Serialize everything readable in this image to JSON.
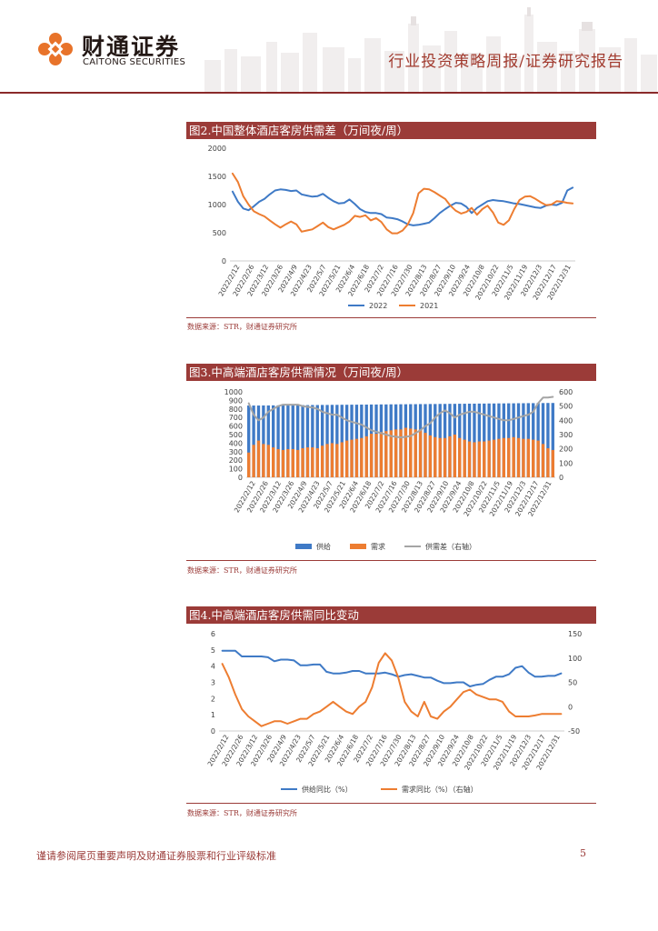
{
  "header": {
    "logo_cn": "财通证券",
    "logo_en": "CAITONG SECURITIES",
    "report_type": "行业投资策略周报/证券研究报告"
  },
  "colors": {
    "accent": "#9b3b38",
    "blue": "#3f7ac6",
    "orange": "#ed7d31",
    "gray": "#a5a5a5"
  },
  "footer": {
    "note": "谨请参阅尾页重要声明及财通证券股票和行业评级标准",
    "page_number": "5"
  },
  "chart_data": [
    {
      "type": "line",
      "title": "图2.中国整体酒店客房供需差（万间夜/周）",
      "source": "数据来源：STR，财通证券研究所",
      "ylim": [
        0,
        2000
      ],
      "yticks": [
        "0",
        "500",
        "1000",
        "1500",
        "2000"
      ],
      "xticks": [
        "2022/2/12",
        "2022/2/26",
        "2022/3/12",
        "2022/3/26",
        "2022/4/9",
        "2022/4/23",
        "2022/5/7",
        "2022/5/21",
        "2022/6/4",
        "2022/6/18",
        "2022/7/2",
        "2022/7/16",
        "2022/7/30",
        "2022/8/13",
        "2022/8/27",
        "2022/9/10",
        "2022/9/24",
        "2022/10/8",
        "2022/10/22",
        "2022/11/5",
        "2022/11/19",
        "2022/12/3",
        "2022/12/17",
        "2022/12/31"
      ],
      "series": [
        {
          "name": "2022",
          "color": "#3f7ac6",
          "values": [
            1230,
            1050,
            930,
            900,
            970,
            1050,
            1100,
            1180,
            1250,
            1270,
            1260,
            1240,
            1250,
            1180,
            1160,
            1140,
            1150,
            1190,
            1120,
            1060,
            1020,
            1030,
            1090,
            1010,
            920,
            870,
            850,
            850,
            830,
            770,
            760,
            740,
            700,
            650,
            630,
            640,
            660,
            680,
            760,
            850,
            920,
            980,
            1030,
            1020,
            960,
            850,
            940,
            1000,
            1060,
            1080,
            1070,
            1060,
            1040,
            1020,
            1010,
            990,
            970,
            950,
            940,
            980,
            1000,
            990,
            1030,
            1250,
            1300
          ]
        },
        {
          "name": "2021",
          "color": "#ed7d31",
          "values": [
            1550,
            1400,
            1150,
            1000,
            880,
            830,
            790,
            720,
            650,
            590,
            650,
            700,
            650,
            520,
            540,
            560,
            620,
            680,
            600,
            560,
            600,
            640,
            700,
            800,
            780,
            810,
            720,
            760,
            690,
            560,
            490,
            490,
            540,
            650,
            850,
            1200,
            1280,
            1270,
            1220,
            1160,
            1100,
            980,
            890,
            840,
            870,
            940,
            820,
            920,
            980,
            860,
            680,
            640,
            720,
            920,
            1080,
            1140,
            1150,
            1100,
            1040,
            990,
            1000,
            1060,
            1050,
            1030,
            1020
          ]
        }
      ]
    },
    {
      "type": "bar",
      "title": "图3.中高端酒店客房供需情况（万间夜/周）",
      "source": "数据来源：STR，财通证券研究所",
      "ylim": [
        0,
        1000
      ],
      "yticks": [
        "0",
        "100",
        "200",
        "300",
        "400",
        "500",
        "600",
        "700",
        "800",
        "900",
        "1000"
      ],
      "y2lim": [
        0,
        600
      ],
      "y2ticks": [
        "0",
        "100",
        "200",
        "300",
        "400",
        "500",
        "600"
      ],
      "xticks": [
        "2022/2/12",
        "2022/2/26",
        "2022/3/12",
        "2022/3/26",
        "2022/4/9",
        "2022/4/23",
        "2022/5/7",
        "2022/5/21",
        "2022/6/4",
        "2022/6/18",
        "2022/7/2",
        "2022/7/16",
        "2022/7/30",
        "2022/8/13",
        "2022/8/27",
        "2022/9/10",
        "2022/9/24",
        "2022/10/8",
        "2022/10/22",
        "2022/11/5",
        "2022/11/19",
        "2022/12/3",
        "2022/12/17",
        "2022/12/31"
      ],
      "legend": [
        "供给",
        "需求",
        "供需差（右轴）"
      ],
      "series": [
        {
          "name": "供给",
          "color": "#3f7ac6",
          "axis": "left",
          "values": [
            840,
            840,
            840,
            841,
            841,
            842,
            842,
            843,
            843,
            844,
            844,
            845,
            845,
            846,
            846,
            847,
            847,
            848,
            848,
            849,
            849,
            850,
            850,
            851,
            851,
            852,
            852,
            853,
            853,
            854,
            854,
            855,
            855,
            856,
            856,
            857,
            857,
            858,
            858,
            859,
            859,
            860,
            860,
            861,
            861,
            862,
            862,
            863,
            863,
            864,
            864,
            865,
            865,
            866,
            866,
            867,
            867,
            868,
            868,
            869,
            869,
            870,
            870
          ]
        },
        {
          "name": "需求",
          "color": "#ed7d31",
          "axis": "left",
          "values": [
            290,
            380,
            430,
            390,
            380,
            350,
            330,
            320,
            330,
            330,
            320,
            340,
            350,
            350,
            340,
            370,
            390,
            400,
            390,
            410,
            430,
            440,
            450,
            460,
            480,
            510,
            510,
            530,
            540,
            550,
            560,
            560,
            580,
            570,
            560,
            560,
            520,
            490,
            470,
            460,
            460,
            480,
            500,
            460,
            440,
            420,
            410,
            420,
            420,
            430,
            440,
            450,
            460,
            460,
            470,
            460,
            450,
            450,
            440,
            430,
            390,
            340,
            320
          ]
        },
        {
          "name": "供需差（右轴）",
          "color": "#a5a5a5",
          "axis": "right",
          "values": [
            520,
            440,
            400,
            420,
            460,
            480,
            500,
            510,
            510,
            510,
            510,
            500,
            495,
            490,
            480,
            460,
            450,
            440,
            440,
            420,
            400,
            390,
            380,
            370,
            350,
            330,
            320,
            310,
            300,
            290,
            285,
            280,
            285,
            290,
            310,
            330,
            360,
            380,
            420,
            450,
            470,
            450,
            420,
            440,
            450,
            460,
            460,
            450,
            440,
            430,
            420,
            410,
            400,
            400,
            410,
            420,
            430,
            440,
            460,
            520,
            560,
            560,
            565
          ]
        }
      ]
    },
    {
      "type": "line",
      "title": "图4.中高端酒店客房供需同比变动",
      "source": "数据来源：STR，财通证券研究所",
      "ylim": [
        0,
        6
      ],
      "yticks": [
        "0",
        "1",
        "2",
        "3",
        "4",
        "5",
        "6"
      ],
      "y2lim": [
        -50,
        150
      ],
      "y2ticks": [
        "-50",
        "0",
        "50",
        "100",
        "150"
      ],
      "xticks": [
        "2022/2/12",
        "2022/2/26",
        "2022/3/12",
        "2022/3/26",
        "2022/4/9",
        "2022/4/23",
        "2022/5/7",
        "2022/5/21",
        "2022/6/4",
        "2022/6/18",
        "2022/7/2",
        "2022/7/16",
        "2022/7/30",
        "2022/8/13",
        "2022/8/27",
        "2022/9/10",
        "2022/9/24",
        "2022/10/8",
        "2022/10/22",
        "2022/11/5",
        "2022/11/19",
        "2022/12/3",
        "2022/12/17",
        "2022/12/31"
      ],
      "legend": [
        "供给同比（%）",
        "需求同比（%）（右轴）"
      ],
      "series": [
        {
          "name": "供给同比（%）",
          "color": "#3f7ac6",
          "axis": "left",
          "values": [
            4.95,
            4.95,
            4.95,
            4.6,
            4.6,
            4.6,
            4.6,
            4.55,
            4.3,
            4.4,
            4.4,
            4.35,
            4.05,
            4.05,
            4.1,
            4.1,
            3.65,
            3.55,
            3.55,
            3.6,
            3.7,
            3.7,
            3.55,
            3.55,
            3.55,
            3.6,
            3.5,
            3.35,
            3.45,
            3.5,
            3.4,
            3.3,
            3.3,
            3.1,
            2.95,
            2.95,
            3.0,
            3.0,
            2.75,
            2.85,
            2.9,
            3.15,
            3.35,
            3.35,
            3.5,
            3.9,
            4.0,
            3.6,
            3.35,
            3.35,
            3.4,
            3.4,
            3.55
          ]
        },
        {
          "name": "需求同比（%）（右轴）",
          "color": "#ed7d31",
          "axis": "right",
          "values": [
            88,
            60,
            25,
            -5,
            -20,
            -30,
            -40,
            -35,
            -30,
            -30,
            -35,
            -30,
            -25,
            -25,
            -15,
            -10,
            0,
            10,
            0,
            -10,
            -15,
            0,
            10,
            40,
            90,
            110,
            95,
            60,
            10,
            -10,
            -20,
            10,
            -20,
            -25,
            -10,
            0,
            15,
            30,
            35,
            25,
            20,
            15,
            15,
            10,
            -10,
            -20,
            -20,
            -20,
            -18,
            -15,
            -15,
            -15,
            -15
          ]
        }
      ]
    }
  ]
}
